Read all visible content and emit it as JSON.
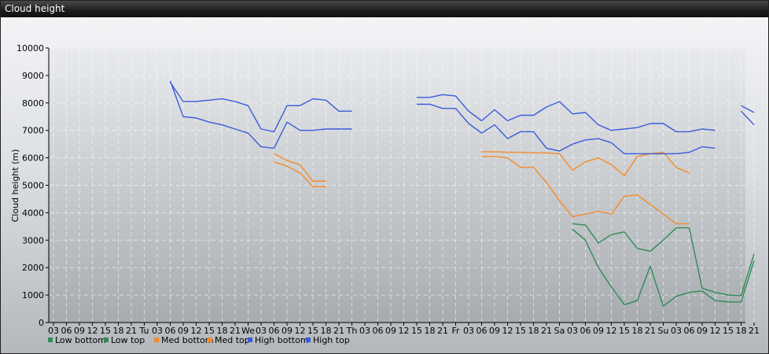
{
  "window": {
    "title": "Cloud height"
  },
  "chart_data": {
    "type": "line",
    "title": "",
    "ylabel": "Cloud height (m)",
    "xlabel": "",
    "ylim": [
      0,
      10000
    ],
    "yticks": [
      0,
      1000,
      2000,
      3000,
      4000,
      5000,
      6000,
      7000,
      8000,
      9000,
      10000
    ],
    "x_tick_labels": [
      "03",
      "06",
      "09",
      "12",
      "15",
      "18",
      "21",
      "Tu",
      "03",
      "06",
      "09",
      "12",
      "15",
      "18",
      "21",
      "We",
      "03",
      "06",
      "09",
      "12",
      "15",
      "18",
      "21",
      "Th",
      "03",
      "06",
      "09",
      "12",
      "15",
      "18",
      "21",
      "Fr",
      "03",
      "06",
      "09",
      "12",
      "15",
      "18",
      "21",
      "Sa",
      "03",
      "06",
      "09",
      "12",
      "15",
      "18",
      "21",
      "Su",
      "03",
      "06",
      "09",
      "12",
      "15",
      "18",
      "21"
    ],
    "x_unit": "3-hour steps from Monday 03:00 (tick index 0)",
    "grid": true,
    "legend_position": "bottom-left",
    "series": [
      {
        "name": "Low bottom",
        "color": "#2e8b57",
        "segments": [
          [
            [
              40,
              3400
            ],
            [
              41,
              3000
            ],
            [
              42,
              2000
            ],
            [
              43,
              1300
            ],
            [
              44,
              650
            ],
            [
              45,
              800
            ],
            [
              46,
              2050
            ],
            [
              47,
              600
            ],
            [
              48,
              950
            ],
            [
              49,
              1100
            ],
            [
              50,
              1150
            ],
            [
              51,
              800
            ],
            [
              52,
              750
            ],
            [
              53,
              750
            ],
            [
              54,
              2250
            ]
          ]
        ]
      },
      {
        "name": "Low top",
        "color": "#2e8b57",
        "segments": [
          [
            [
              40,
              3600
            ],
            [
              41,
              3550
            ],
            [
              42,
              2900
            ],
            [
              43,
              3200
            ],
            [
              44,
              3300
            ],
            [
              45,
              2700
            ],
            [
              46,
              2600
            ],
            [
              47,
              3000
            ],
            [
              48,
              3450
            ],
            [
              49,
              3450
            ],
            [
              50,
              1250
            ],
            [
              51,
              1100
            ],
            [
              52,
              1000
            ],
            [
              53,
              980
            ],
            [
              54,
              2500
            ]
          ]
        ]
      },
      {
        "name": "Med bottom",
        "color": "#f28c28",
        "segments": [
          [
            [
              17,
              5850
            ],
            [
              18,
              5700
            ],
            [
              19,
              5450
            ],
            [
              20,
              4950
            ],
            [
              21,
              4950
            ]
          ],
          [
            [
              33,
              6050
            ],
            [
              34,
              6050
            ],
            [
              35,
              6000
            ],
            [
              36,
              5650
            ],
            [
              37,
              5650
            ],
            [
              38,
              5100
            ],
            [
              39,
              4450
            ],
            [
              40,
              3850
            ],
            [
              41,
              3950
            ],
            [
              42,
              4050
            ],
            [
              43,
              3950
            ],
            [
              44,
              4600
            ],
            [
              45,
              4650
            ],
            [
              46,
              4300
            ],
            [
              47,
              3950
            ],
            [
              48,
              3600
            ],
            [
              49,
              3600
            ]
          ]
        ]
      },
      {
        "name": "Med top",
        "color": "#f28c28",
        "segments": [
          [
            [
              17,
              6150
            ],
            [
              18,
              5900
            ],
            [
              19,
              5750
            ],
            [
              20,
              5150
            ],
            [
              21,
              5150
            ]
          ],
          [
            [
              33,
              6220
            ],
            [
              34,
              6220
            ],
            [
              35,
              6200
            ],
            [
              36,
              6200
            ],
            [
              37,
              6180
            ],
            [
              38,
              6180
            ],
            [
              39,
              6150
            ],
            [
              40,
              5550
            ],
            [
              41,
              5850
            ],
            [
              42,
              6000
            ],
            [
              43,
              5750
            ],
            [
              44,
              5350
            ],
            [
              45,
              6050
            ],
            [
              46,
              6150
            ],
            [
              47,
              6200
            ],
            [
              48,
              5650
            ],
            [
              49,
              5450
            ]
          ]
        ]
      },
      {
        "name": "High bottom",
        "color": "#3a5bd9",
        "segments": [
          [
            [
              9,
              8800
            ],
            [
              10,
              7500
            ],
            [
              11,
              7450
            ],
            [
              12,
              7300
            ],
            [
              13,
              7200
            ],
            [
              14,
              7050
            ],
            [
              15,
              6900
            ],
            [
              16,
              6400
            ],
            [
              17,
              6350
            ],
            [
              18,
              7300
            ],
            [
              19,
              7000
            ],
            [
              20,
              7000
            ],
            [
              21,
              7050
            ],
            [
              22,
              7050
            ],
            [
              23,
              7050
            ]
          ],
          [
            [
              28,
              7950
            ],
            [
              29,
              7950
            ],
            [
              30,
              7800
            ],
            [
              31,
              7800
            ],
            [
              32,
              7250
            ],
            [
              33,
              6900
            ],
            [
              34,
              7200
            ],
            [
              35,
              6700
            ],
            [
              36,
              6950
            ],
            [
              37,
              6950
            ],
            [
              38,
              6350
            ],
            [
              39,
              6250
            ],
            [
              40,
              6500
            ],
            [
              41,
              6650
            ],
            [
              42,
              6700
            ],
            [
              43,
              6550
            ],
            [
              44,
              6150
            ],
            [
              45,
              6150
            ],
            [
              46,
              6150
            ],
            [
              47,
              6150
            ],
            [
              48,
              6150
            ],
            [
              49,
              6200
            ],
            [
              50,
              6400
            ],
            [
              51,
              6350
            ]
          ],
          [
            [
              53,
              7700
            ],
            [
              54,
              7200
            ]
          ]
        ]
      },
      {
        "name": "High top",
        "color": "#3a5bd9",
        "segments": [
          [
            [
              9,
              8750
            ],
            [
              10,
              8050
            ],
            [
              11,
              8050
            ],
            [
              12,
              8100
            ],
            [
              13,
              8150
            ],
            [
              14,
              8050
            ],
            [
              15,
              7900
            ],
            [
              16,
              7050
            ],
            [
              17,
              6950
            ],
            [
              18,
              7900
            ],
            [
              19,
              7900
            ],
            [
              20,
              8150
            ],
            [
              21,
              8100
            ],
            [
              22,
              7700
            ],
            [
              23,
              7700
            ]
          ],
          [
            [
              28,
              8200
            ],
            [
              29,
              8200
            ],
            [
              30,
              8300
            ],
            [
              31,
              8250
            ],
            [
              32,
              7700
            ],
            [
              33,
              7350
            ],
            [
              34,
              7750
            ],
            [
              35,
              7350
            ],
            [
              36,
              7550
            ],
            [
              37,
              7550
            ],
            [
              38,
              7850
            ],
            [
              39,
              8050
            ],
            [
              40,
              7600
            ],
            [
              41,
              7650
            ],
            [
              42,
              7200
            ],
            [
              43,
              7000
            ],
            [
              44,
              7050
            ],
            [
              45,
              7100
            ],
            [
              46,
              7250
            ],
            [
              47,
              7250
            ],
            [
              48,
              6950
            ],
            [
              49,
              6950
            ],
            [
              50,
              7050
            ],
            [
              51,
              7000
            ]
          ],
          [
            [
              53,
              7900
            ],
            [
              54,
              7650
            ]
          ]
        ]
      }
    ]
  }
}
